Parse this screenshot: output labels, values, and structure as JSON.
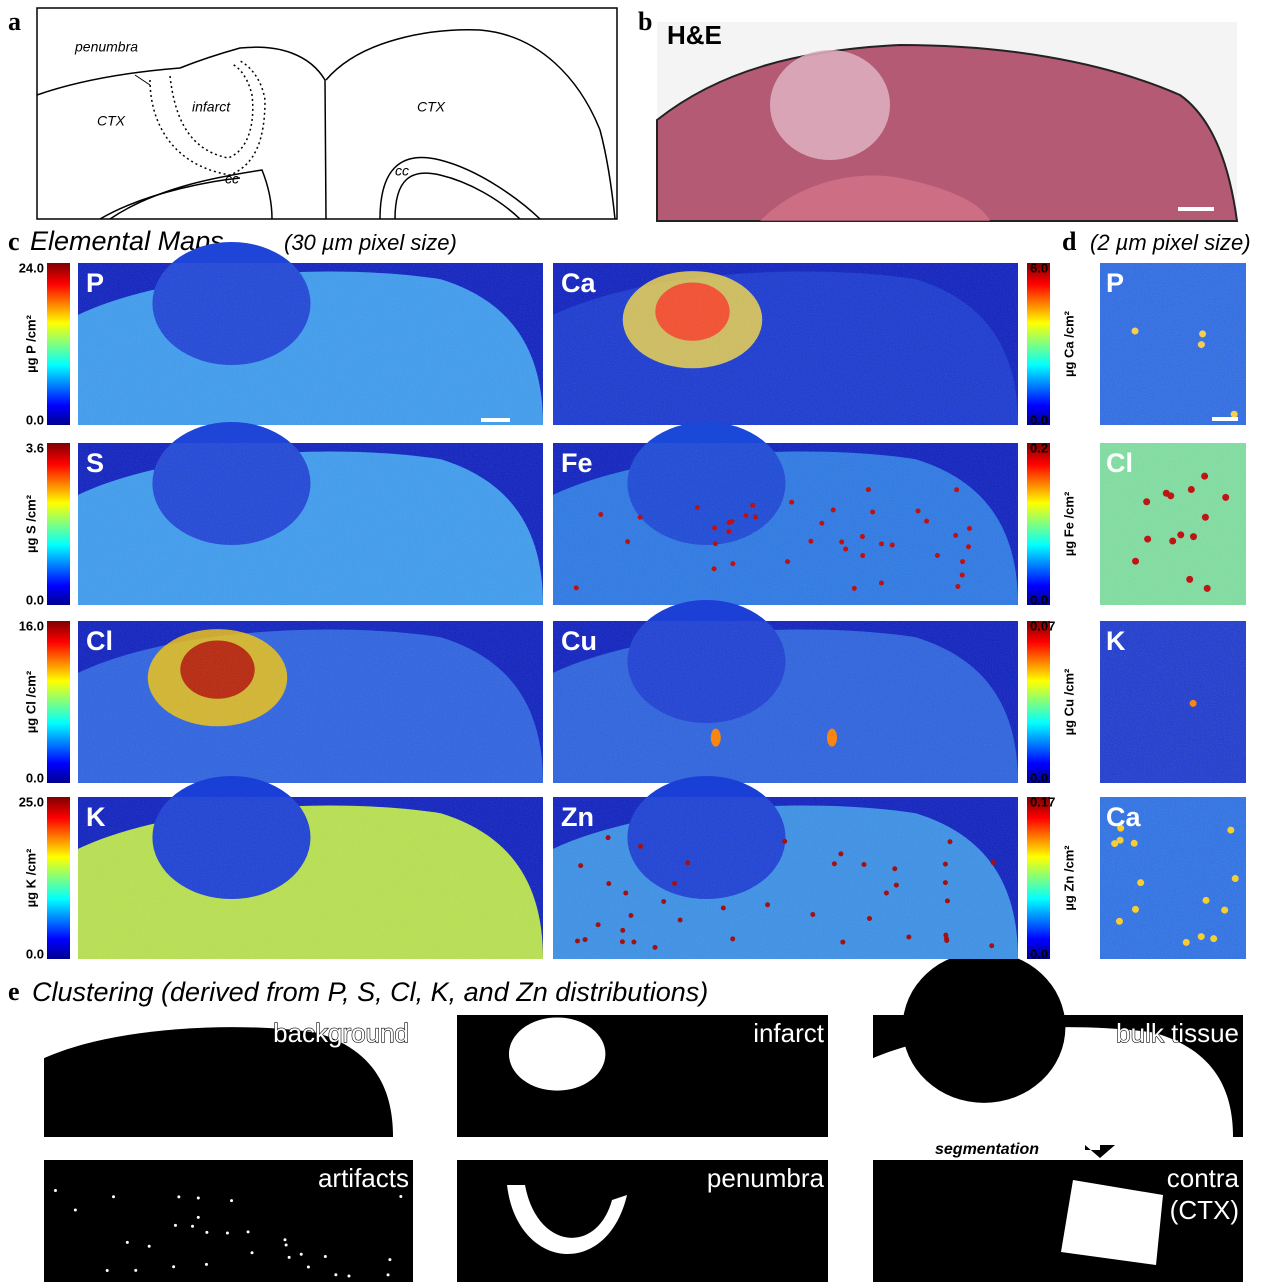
{
  "panel_a": {
    "letter": "a",
    "labels": [
      "penumbra",
      "infarct",
      "CTX",
      "CTX",
      "cc",
      "cc"
    ]
  },
  "panel_b": {
    "letter": "b",
    "title": "H&E"
  },
  "panel_c": {
    "letter": "c",
    "title": "Elemental Maps",
    "subtitle": "(30 µm pixel size)",
    "maps": [
      {
        "element": "P",
        "unit": "µg P /cm²",
        "max": "24.0",
        "min": "0.0"
      },
      {
        "element": "Ca",
        "unit": "µg Ca /cm²",
        "max": "6.0",
        "min": "0.0"
      },
      {
        "element": "S",
        "unit": "µg S /cm²",
        "max": "3.6",
        "min": "0.0"
      },
      {
        "element": "Fe",
        "unit": "µg Fe /cm²",
        "max": "0.2",
        "min": "0.0"
      },
      {
        "element": "Cl",
        "unit": "µg Cl /cm²",
        "max": "16.0",
        "min": "0.0"
      },
      {
        "element": "Cu",
        "unit": "µg Cu /cm²",
        "max": "0.07",
        "min": "0.0"
      },
      {
        "element": "K",
        "unit": "µg K /cm²",
        "max": "25.0",
        "min": "0.0"
      },
      {
        "element": "Zn",
        "unit": "µg Zn /cm²",
        "max": "0.17",
        "min": "0.0"
      }
    ]
  },
  "panel_d": {
    "letter": "d",
    "subtitle": "(2 µm pixel size)",
    "maps": [
      "P",
      "Cl",
      "K",
      "Ca"
    ]
  },
  "panel_e": {
    "letter": "e",
    "title": "Clustering (derived from P, S, Cl, K, and Zn distributions)",
    "clusters": [
      "background",
      "infarct",
      "bulk tissue",
      "artifacts",
      "penumbra",
      "contra"
    ],
    "contra_sublabel": "(CTX)",
    "arrow_label": "segmentation"
  }
}
